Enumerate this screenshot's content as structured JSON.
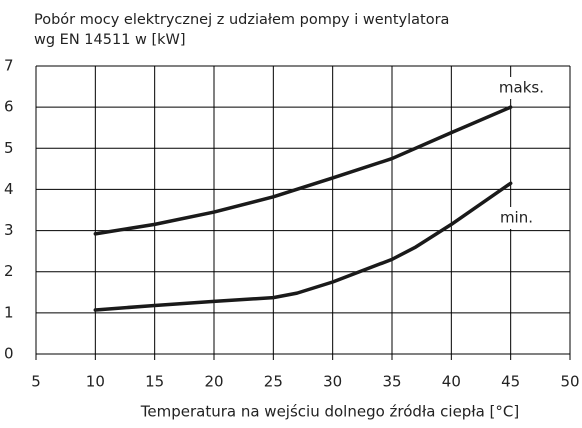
{
  "chart_data": {
    "type": "line",
    "title": [
      "Pobór mocy elektrycznej z udziałem pompy i wentylatora",
      "wg EN 14511 w [kW]"
    ],
    "x_label": "Temperatura na wejściu dolnego źródła ciepła [°C]",
    "xlim": [
      5,
      50
    ],
    "xticks": [
      5,
      10,
      15,
      20,
      25,
      30,
      35,
      40,
      45,
      50
    ],
    "ylim": [
      0,
      7
    ],
    "yticks": [
      0,
      1,
      2,
      3,
      4,
      5,
      6,
      7
    ],
    "grid": true,
    "series": [
      {
        "name": "maks.",
        "color": "#1a1a1a",
        "x": [
          10,
          15,
          20,
          25,
          30,
          35,
          40,
          45
        ],
        "values": [
          2.92,
          3.15,
          3.45,
          3.82,
          4.28,
          4.75,
          5.38,
          6.0
        ]
      },
      {
        "name": "min.",
        "color": "#1a1a1a",
        "x": [
          10,
          15,
          20,
          25,
          27,
          30,
          35,
          37,
          40,
          45
        ],
        "values": [
          1.07,
          1.18,
          1.28,
          1.37,
          1.48,
          1.75,
          2.3,
          2.6,
          3.15,
          4.15
        ]
      }
    ]
  }
}
